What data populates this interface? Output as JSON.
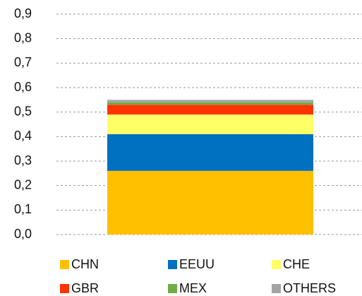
{
  "chart_data": {
    "type": "stacked_bar",
    "categories": [
      null
    ],
    "series": [
      {
        "name": "CHN",
        "color": "#FFC000",
        "values": [
          0.26
        ]
      },
      {
        "name": "EEUU",
        "color": "#0070C0",
        "values": [
          0.15
        ]
      },
      {
        "name": "CHE",
        "color": "#FFFF66",
        "values": [
          0.08
        ]
      },
      {
        "name": "GBR",
        "color": "#FF3300",
        "values": [
          0.04
        ]
      },
      {
        "name": "MEX",
        "color": "#70AD47",
        "values": [
          0.01
        ]
      },
      {
        "name": "OTHERS",
        "color": "#A5A5A5",
        "values": [
          0.01
        ]
      }
    ],
    "ylim": [
      0,
      0.9
    ],
    "yticks": [
      {
        "value": 0,
        "label": "0,0"
      },
      {
        "value": 0.1,
        "label": "0,1"
      },
      {
        "value": 0.2,
        "label": "0,2"
      },
      {
        "value": 0.3,
        "label": "0,3"
      },
      {
        "value": 0.4,
        "label": "0,4"
      },
      {
        "value": 0.5,
        "label": "0,5"
      },
      {
        "value": 0.6,
        "label": "0,6"
      },
      {
        "value": 0.7,
        "label": "0,7"
      },
      {
        "value": 0.8,
        "label": "0,8"
      },
      {
        "value": 0.9,
        "label": "0,9"
      }
    ],
    "grid": true,
    "legend": "bottom"
  }
}
